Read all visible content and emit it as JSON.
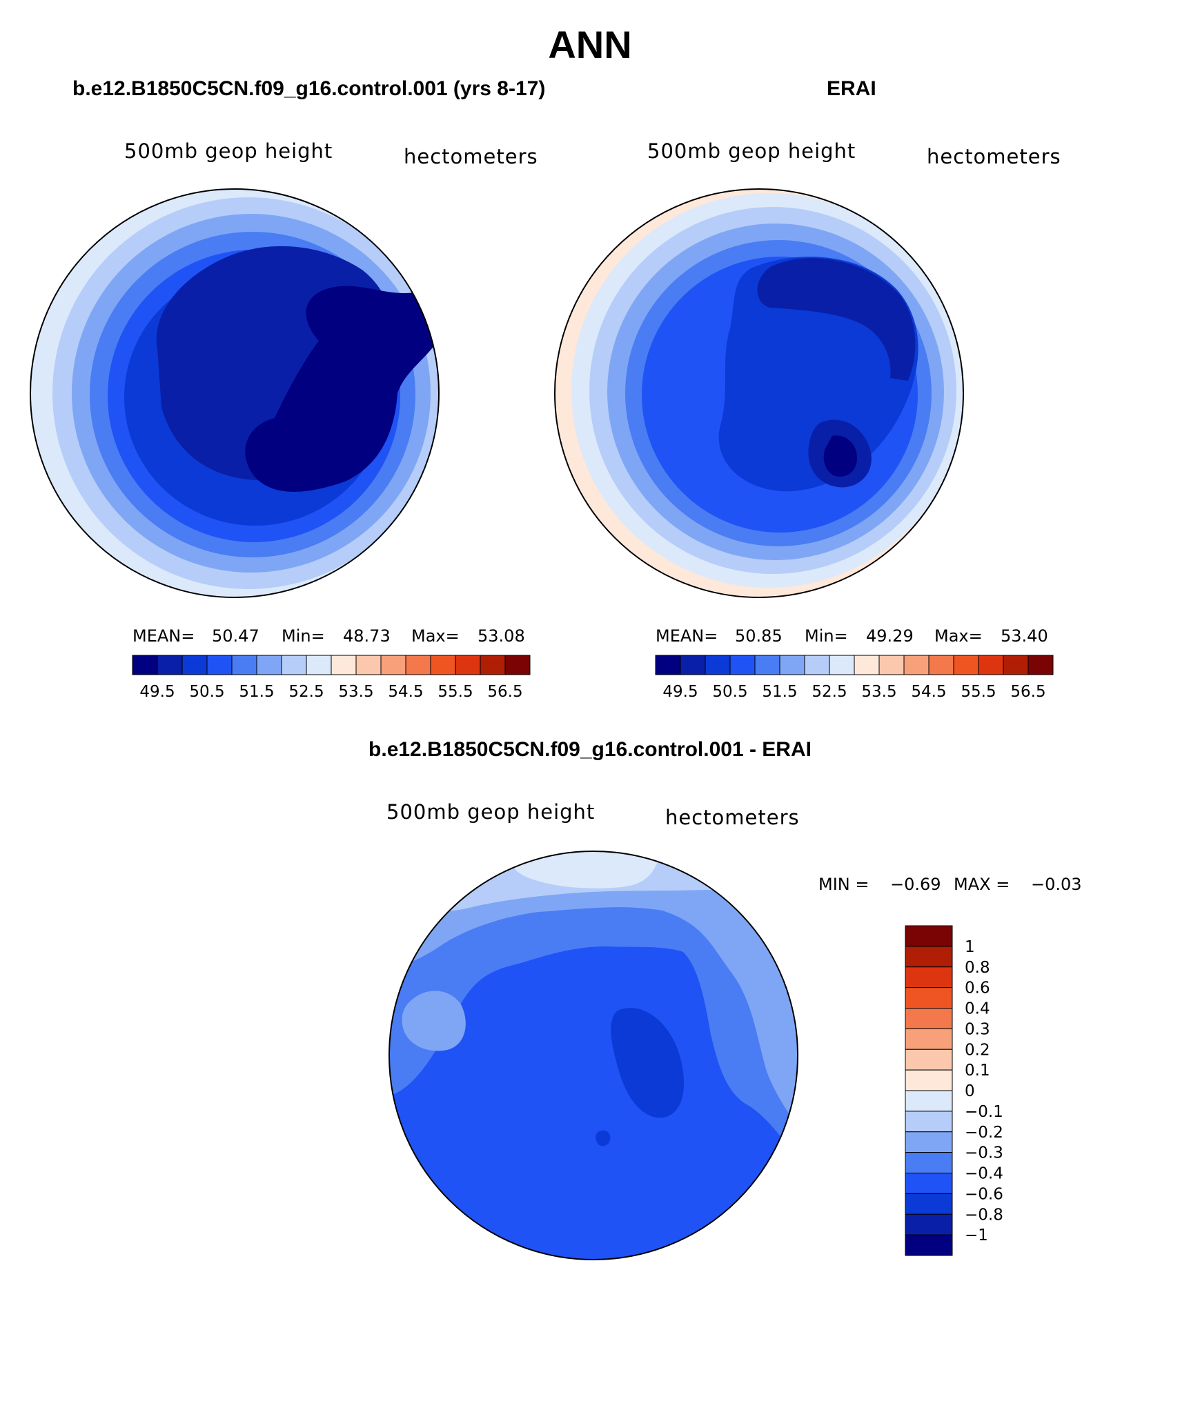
{
  "page": {
    "main_title": "ANN",
    "background": "#ffffff"
  },
  "panels": [
    {
      "id": "model",
      "title": "b.e12.B1850C5CN.f09_g16.control.001 (yrs 8-17)",
      "field_label": "500mb geop height",
      "units_label": "hectometers",
      "stats": {
        "mean_label": "MEAN=",
        "mean": "50.47",
        "min_label": "Min=",
        "min": "48.73",
        "max_label": "Max=",
        "max": "53.08"
      },
      "colorbar_ticks": [
        "49.5",
        "50.5",
        "51.5",
        "52.5",
        "53.5",
        "54.5",
        "55.5",
        "56.5"
      ]
    },
    {
      "id": "obs",
      "title": "ERAI",
      "field_label": "500mb geop height",
      "units_label": "hectometers",
      "stats": {
        "mean_label": "MEAN=",
        "mean": "50.85",
        "min_label": "Min=",
        "min": "49.29",
        "max_label": "Max=",
        "max": "53.40"
      },
      "colorbar_ticks": [
        "49.5",
        "50.5",
        "51.5",
        "52.5",
        "53.5",
        "54.5",
        "55.5",
        "56.5"
      ]
    }
  ],
  "difference": {
    "title": "b.e12.B1850C5CN.f09_g16.control.001 - ERAI",
    "field_label": "500mb geop height",
    "units_label": "hectometers",
    "min_label": "MIN =",
    "min": "−0.69",
    "max_label": "MAX =",
    "max": "−0.03",
    "colorbar_ticks": [
      "1",
      "0.8",
      "0.6",
      "0.4",
      "0.3",
      "0.2",
      "0.1",
      "0",
      "−0.1",
      "−0.2",
      "−0.3",
      "−0.4",
      "−0.6",
      "−0.8",
      "−1"
    ]
  },
  "colors": {
    "abs_scale": [
      "#000080",
      "#0a1fa8",
      "#0b3ad6",
      "#1f53f5",
      "#4a7cf3",
      "#7fa6f5",
      "#b5cdf8",
      "#dbe9fb",
      "#fde8da",
      "#fbc8ad",
      "#f8a07a",
      "#f3784b",
      "#ee5522",
      "#dd3510",
      "#b01e06",
      "#7a0303"
    ],
    "diff_scale": [
      "#7a0303",
      "#b01e06",
      "#dd3510",
      "#ee5522",
      "#f3784b",
      "#f8a07a",
      "#fbc8ad",
      "#fde8da",
      "#dbe9fb",
      "#b5cdf8",
      "#7fa6f5",
      "#4a7cf3",
      "#1f53f5",
      "#0b3ad6",
      "#0a1fa8",
      "#000080"
    ],
    "coastline": "#000000"
  }
}
